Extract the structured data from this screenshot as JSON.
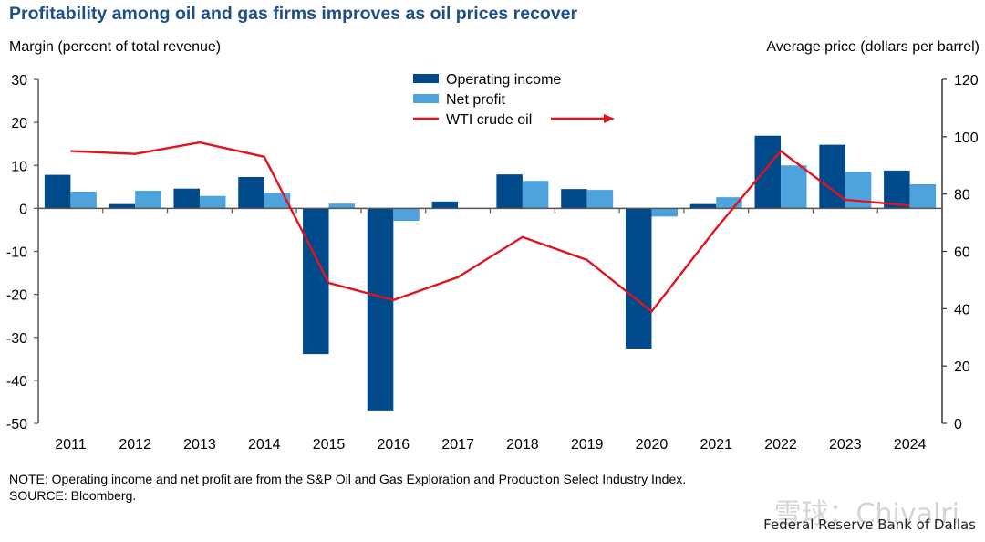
{
  "header": {
    "title": "Profitability among oil and gas firms improves as oil prices recover",
    "left_axis_label": "Margin (percent of total revenue)",
    "right_axis_label": "Average price (dollars per barrel)"
  },
  "footer": {
    "note": "NOTE: Operating income and net profit are from the S&P Oil and Gas Exploration and Production Select Industry Index.",
    "source": "SOURCE: Bloomberg.",
    "credit": "Federal Reserve Bank of Dallas",
    "watermark": "雪球：Chivalri"
  },
  "chart_data": {
    "type": "bar",
    "title": "Profitability among oil and gas firms improves as oil prices recover",
    "xlabel": "",
    "ylabel": "Margin (percent of total revenue)",
    "y2label": "Average price (dollars per barrel)",
    "categories": [
      "2011",
      "2012",
      "2013",
      "2014",
      "2015",
      "2016",
      "2017",
      "2018",
      "2019",
      "2020",
      "2021",
      "2022",
      "2023",
      "2024"
    ],
    "ylim": [
      -50,
      30
    ],
    "y2lim": [
      0,
      120
    ],
    "yticks": [
      30,
      20,
      10,
      0,
      -10,
      -20,
      -30,
      -40,
      -50
    ],
    "y2ticks": [
      120,
      100,
      80,
      60,
      40,
      20,
      0
    ],
    "grid": false,
    "legend_position": "top-center",
    "series": [
      {
        "name": "Operating income",
        "type": "bar",
        "axis": "left",
        "color": "#004a8b",
        "values": [
          7.8,
          1.0,
          4.6,
          7.3,
          -33.9,
          -47.0,
          1.6,
          7.9,
          4.5,
          -32.6,
          1.0,
          16.9,
          14.8,
          8.8
        ]
      },
      {
        "name": "Net profit",
        "type": "bar",
        "axis": "left",
        "color": "#4fa3dc",
        "values": [
          3.9,
          4.1,
          2.9,
          3.6,
          1.1,
          -2.9,
          0.0,
          6.4,
          4.3,
          -1.9,
          2.6,
          10.0,
          8.5,
          5.6
        ]
      },
      {
        "name": "WTI crude oil",
        "type": "line",
        "axis": "right",
        "color": "#e0141e",
        "values": [
          95,
          94,
          98,
          93,
          49,
          43,
          51,
          65,
          57,
          39,
          68,
          95,
          78,
          76
        ]
      }
    ],
    "legend_annotation": "arrow pointing right (WTI on right axis)"
  }
}
